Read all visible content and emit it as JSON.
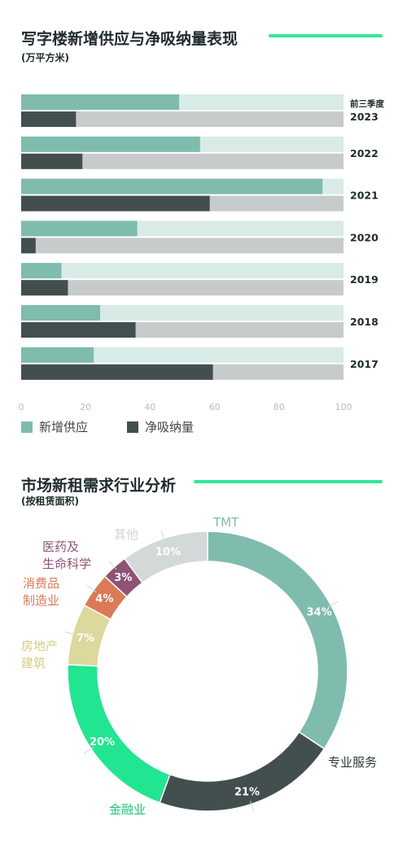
{
  "colors": {
    "accent": "#2ee89a",
    "supply": "#7fbcad",
    "supply_track": "#d9ebe6",
    "absorption": "#434f4f",
    "absorption_track": "#c7cbcb",
    "grid_tick": "#b9bdbd"
  },
  "section1": {
    "title": "写字楼新增供应与净吸纳量表现",
    "subtitle": "(万平方米)",
    "legend": {
      "supply": "新增供应",
      "absorption": "净吸纳量"
    }
  },
  "section2": {
    "title": "市场新租需求行业分析",
    "subtitle": "(按租赁面积)"
  },
  "chart_data": [
    {
      "type": "bar",
      "orientation": "horizontal",
      "categories": [
        [
          "前三季度",
          "2023"
        ],
        [
          "2022"
        ],
        [
          "2021"
        ],
        [
          "2020"
        ],
        [
          "2019"
        ],
        [
          "2018"
        ],
        [
          "2017"
        ]
      ],
      "series": [
        {
          "name": "新增供应",
          "values": [
            49,
            55.5,
            93.5,
            36,
            12.5,
            24.5,
            22.5
          ]
        },
        {
          "name": "净吸纳量",
          "values": [
            17,
            19,
            58.5,
            4.5,
            14.5,
            35.5,
            59.5
          ]
        }
      ],
      "xlim": [
        0,
        100
      ],
      "xticks": [
        0,
        20,
        40,
        60,
        80,
        100
      ],
      "legend": "bottom-left"
    },
    {
      "type": "pie",
      "style": "donut",
      "slices": [
        {
          "label": [
            "TMT"
          ],
          "value": 34,
          "text": "34%",
          "color": "#7fbcad",
          "label_color": "#7fbcad"
        },
        {
          "label": [
            "专业服务"
          ],
          "value": 21,
          "text": "21%",
          "color": "#434f4f",
          "label_color": "#2f3a3a"
        },
        {
          "label": [
            "金融业"
          ],
          "value": 20,
          "text": "20%",
          "color": "#22e592",
          "label_color": "#22c47e"
        },
        {
          "label": [
            "房地产",
            "建筑"
          ],
          "value": 7,
          "text": "7%",
          "color": "#ddd89b",
          "label_color": "#d4cd86"
        },
        {
          "label": [
            "消费品",
            "制造业"
          ],
          "value": 4,
          "text": "4%",
          "color": "#db7a57",
          "label_color": "#db7a57"
        },
        {
          "label": [
            "医药及",
            "生命科学"
          ],
          "value": 3,
          "text": "3%",
          "color": "#8e5375",
          "label_color": "#8e5375"
        },
        {
          "label": [
            "其他"
          ],
          "value": 10,
          "text": "10%",
          "color": "#d3d8d8",
          "label_color": "#cfd4d4"
        }
      ]
    }
  ]
}
